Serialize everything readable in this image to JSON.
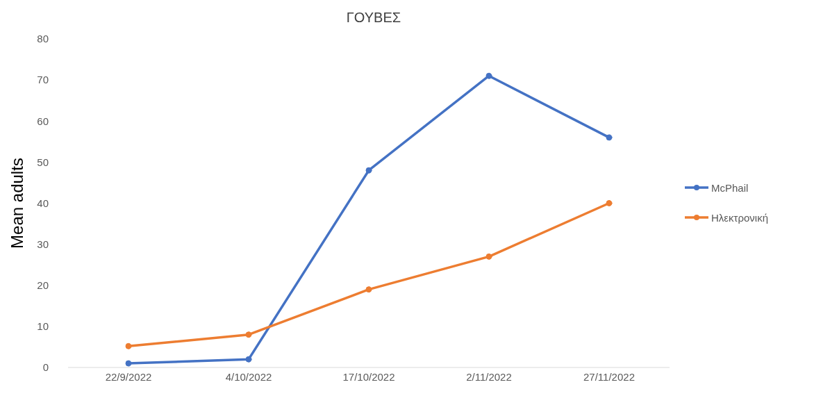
{
  "chart_data": {
    "type": "line",
    "title": "ΓΟΥΒΕΣ",
    "ylabel": "Mean adults",
    "categories": [
      "22/9/2022",
      "4/10/2022",
      "17/10/2022",
      "2/11/2022",
      "27/11/2022"
    ],
    "series": [
      {
        "name": "McPhail",
        "color": "#4472c4",
        "values": [
          1,
          2,
          48,
          71,
          56
        ]
      },
      {
        "name": "Ηλεκτρονική",
        "color": "#ed7d31",
        "values": [
          5.2,
          8,
          19,
          27,
          40
        ]
      }
    ],
    "ylim": [
      0,
      80
    ],
    "yticks": [
      0,
      10,
      20,
      30,
      40,
      50,
      60,
      70,
      80
    ],
    "grid": false,
    "legend": "right",
    "marker": "circle",
    "line_style": "solid"
  }
}
